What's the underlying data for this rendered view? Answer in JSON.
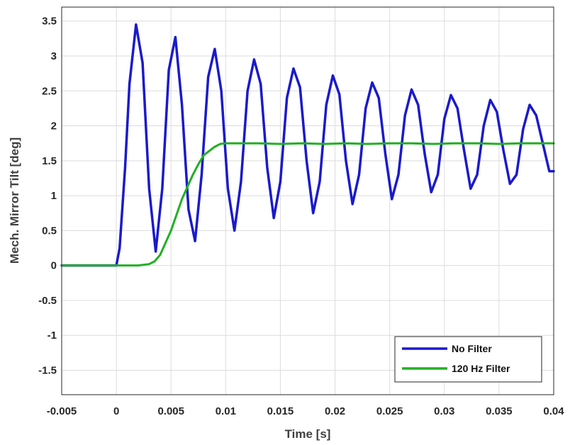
{
  "chart_data": {
    "type": "line",
    "title": "",
    "xlabel": "Time [s]",
    "ylabel": "Mech. Mirror Tilt [deg]",
    "xlim": [
      -0.005,
      0.04
    ],
    "ylim": [
      -1.85,
      3.7
    ],
    "grid": true,
    "legend_position": "bottom-right",
    "x_ticks": [
      "-0.005",
      "0",
      "0.005",
      "0.01",
      "0.015",
      "0.02",
      "0.025",
      "0.03",
      "0.035",
      "0.04"
    ],
    "x_tick_values": [
      -0.005,
      0,
      0.005,
      0.01,
      0.015,
      0.02,
      0.025,
      0.03,
      0.035,
      0.04
    ],
    "y_ticks": [
      "3.5",
      "3",
      "2.5",
      "2",
      "1.5",
      "1",
      "0.5",
      "0",
      "-0.5",
      "-1",
      "-1.5"
    ],
    "y_tick_values": [
      3.5,
      3,
      2.5,
      2,
      1.5,
      1,
      0.5,
      0,
      -0.5,
      -1,
      -1.5
    ],
    "series": [
      {
        "name": "No Filter",
        "color": "#1a1acc",
        "x": [
          -0.005,
          0.0,
          0.0003,
          0.0008,
          0.0012,
          0.0018,
          0.0024,
          0.003,
          0.0036,
          0.0042,
          0.0048,
          0.0054,
          0.006,
          0.0066,
          0.0072,
          0.0078,
          0.0084,
          0.009,
          0.0096,
          0.0102,
          0.0108,
          0.0114,
          0.012,
          0.0126,
          0.0132,
          0.0138,
          0.0144,
          0.015,
          0.0156,
          0.0162,
          0.0168,
          0.0174,
          0.018,
          0.0186,
          0.0192,
          0.0198,
          0.0204,
          0.021,
          0.0216,
          0.0222,
          0.0228,
          0.0234,
          0.024,
          0.0246,
          0.0252,
          0.0258,
          0.0264,
          0.027,
          0.0276,
          0.0282,
          0.0288,
          0.0294,
          0.03,
          0.0306,
          0.0312,
          0.0318,
          0.0324,
          0.033,
          0.0336,
          0.0342,
          0.0348,
          0.0354,
          0.036,
          0.0366,
          0.0372,
          0.0378,
          0.0384,
          0.039,
          0.0396,
          0.04
        ],
        "y": [
          0,
          0,
          0.25,
          1.4,
          2.6,
          3.45,
          2.9,
          1.1,
          0.2,
          1.1,
          2.8,
          3.27,
          2.3,
          0.8,
          0.35,
          1.3,
          2.7,
          3.1,
          2.5,
          1.1,
          0.5,
          1.2,
          2.5,
          2.95,
          2.6,
          1.4,
          0.68,
          1.2,
          2.4,
          2.82,
          2.55,
          1.5,
          0.75,
          1.2,
          2.3,
          2.72,
          2.45,
          1.5,
          0.88,
          1.3,
          2.25,
          2.62,
          2.4,
          1.6,
          0.95,
          1.3,
          2.15,
          2.52,
          2.3,
          1.6,
          1.05,
          1.3,
          2.1,
          2.44,
          2.25,
          1.65,
          1.1,
          1.3,
          2.0,
          2.37,
          2.2,
          1.65,
          1.17,
          1.3,
          1.95,
          2.3,
          2.15,
          1.75,
          1.35,
          1.35
        ]
      },
      {
        "name": "120 Hz Filter",
        "color": "#22b022",
        "x": [
          -0.005,
          0.0,
          0.002,
          0.003,
          0.0035,
          0.004,
          0.005,
          0.006,
          0.007,
          0.0075,
          0.008,
          0.009,
          0.0095,
          0.01,
          0.011,
          0.013,
          0.015,
          0.017,
          0.019,
          0.021,
          0.023,
          0.025,
          0.027,
          0.029,
          0.031,
          0.033,
          0.035,
          0.037,
          0.04
        ],
        "y": [
          0,
          0,
          0,
          0.02,
          0.06,
          0.15,
          0.5,
          0.95,
          1.3,
          1.45,
          1.58,
          1.7,
          1.74,
          1.75,
          1.75,
          1.75,
          1.74,
          1.75,
          1.74,
          1.75,
          1.74,
          1.75,
          1.75,
          1.74,
          1.75,
          1.75,
          1.74,
          1.75,
          1.75
        ]
      }
    ]
  }
}
